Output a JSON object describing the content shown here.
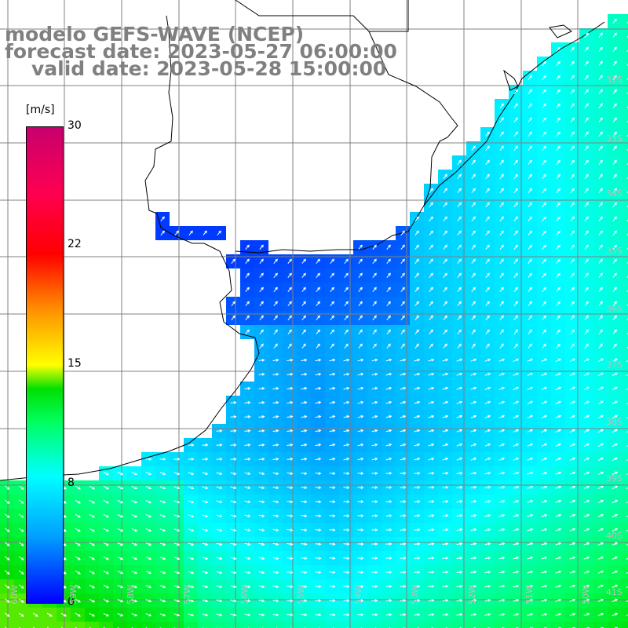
{
  "header": {
    "line1": "modelo GEFS-WAVE (NCEP)",
    "line2": "forecast date: 2023-05-27 06:00:00",
    "line3": "valid date: 2023-05-28 15:00:00"
  },
  "colorbar": {
    "unit": "[m/s]",
    "ticks": [
      "30",
      "22",
      "15",
      "8",
      "0"
    ],
    "colors": [
      "#0000ff",
      "#00a0ff",
      "#00ffff",
      "#00ff60",
      "#00e000",
      "#ffff00",
      "#ff8c00",
      "#ff0000",
      "#ff0050",
      "#c8006e"
    ]
  },
  "map": {
    "land_color": "#ffffff",
    "grid_color": "#808080",
    "coast_color": "#000000",
    "arrow_color": "#ffffff",
    "lat_labels": [
      "32S",
      "33S",
      "34S",
      "35S",
      "36S",
      "37S",
      "38S",
      "39S",
      "40S",
      "41S"
    ],
    "lon_labels": [
      "60W",
      "59W",
      "58W",
      "57W",
      "56W",
      "55W",
      "54W",
      "53W",
      "52W",
      "51W",
      "50W"
    ]
  }
}
